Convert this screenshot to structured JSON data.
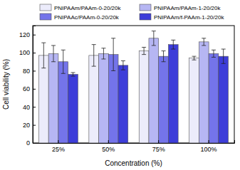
{
  "chart_data": {
    "type": "bar",
    "x_label": "Concentration (%)",
    "y_label": "Cell viability (%)",
    "categories": [
      "25%",
      "50%",
      "75%",
      "100%"
    ],
    "series": [
      {
        "name": "PNIPAAm/PAAm-0-20/20k",
        "color": "#ececfb",
        "values": [
          97,
          97,
          102,
          94
        ],
        "errors": [
          14,
          12,
          4,
          2
        ]
      },
      {
        "name": "PNIPAAm/PAAm-1-20/20k",
        "color": "#b6b6f3",
        "values": [
          99,
          99,
          116,
          112
        ],
        "errors": [
          9,
          6,
          8,
          4
        ]
      },
      {
        "name": "PNIPAAc/PAAm-0-20/20k",
        "color": "#7474ea",
        "values": [
          90,
          98,
          96,
          99
        ],
        "errors": [
          13,
          18,
          6,
          4
        ]
      },
      {
        "name": "PNIPAAm/f-PAAm-1-20/20k",
        "color": "#3d3dd9",
        "values": [
          76,
          86,
          109,
          96
        ],
        "errors": [
          2,
          5,
          5,
          8
        ]
      }
    ],
    "ylim": [
      0,
      130
    ],
    "yticks": [
      0,
      20,
      40,
      60,
      80,
      100,
      120
    ],
    "legend": "top",
    "grid": false
  }
}
